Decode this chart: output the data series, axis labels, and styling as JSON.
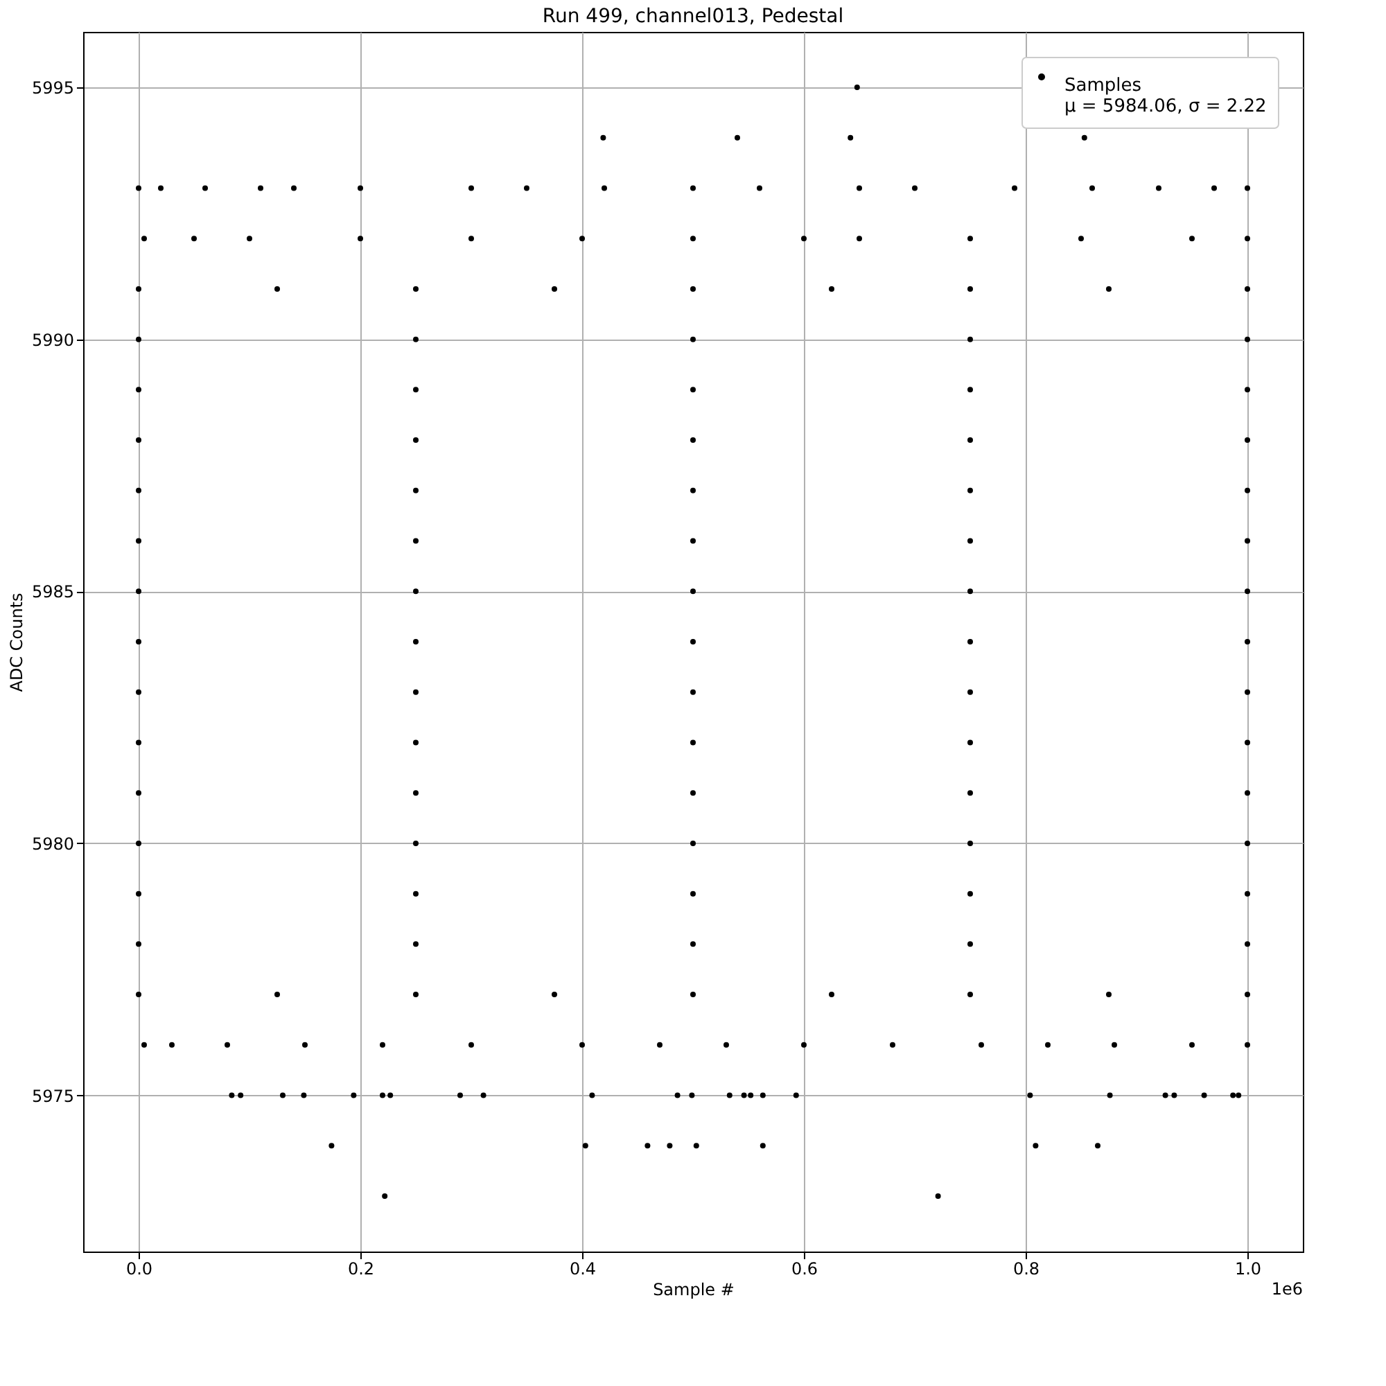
{
  "chart_data": {
    "type": "scatter",
    "title": "Run 499, channel013, Pedestal",
    "xlabel": "Sample #",
    "ylabel": "ADC Counts",
    "xlim": [
      -0.05,
      1.05
    ],
    "xticks": [
      {
        "value": 0,
        "label": "0.0"
      },
      0.2,
      0.4,
      0.6,
      0.8,
      {
        "value": 1,
        "label": "1.0"
      }
    ],
    "ylim": [
      5971.9,
      5996.1
    ],
    "yticks": [
      5975,
      5980,
      5985,
      5990,
      5995
    ],
    "grid": true,
    "legend": "top right",
    "marker": "circle",
    "annotations": [
      "1e6"
    ],
    "series": [
      {
        "name": "Samples\nμ = 5984.06, σ = 2.22",
        "color": "#000000",
        "x": [
          0.648,
          0.419,
          0.54,
          0.642,
          0.853,
          0,
          0.02,
          0.06,
          0.11,
          0.14,
          0.2,
          0.3,
          0.35,
          0.42,
          0.5,
          0.56,
          0.65,
          0.7,
          0.79,
          0.86,
          0.92,
          0.97,
          1,
          0.005,
          0.05,
          0.1,
          0.2,
          0.3,
          0.4,
          0.5,
          0.6,
          0.65,
          0.75,
          0.85,
          0.95,
          1,
          0,
          0.125,
          0.25,
          0.375,
          0.5,
          0.625,
          0.75,
          0.875,
          1,
          0,
          0.25,
          0.5,
          0.75,
          1,
          0,
          0.25,
          0.5,
          0.75,
          1,
          0,
          0.25,
          0.5,
          0.75,
          1,
          0,
          0.25,
          0.5,
          0.75,
          1,
          0,
          0.25,
          0.5,
          0.75,
          1,
          0,
          0.25,
          0.5,
          0.75,
          1,
          0,
          0.25,
          0.5,
          0.75,
          1,
          0,
          0.25,
          0.5,
          0.75,
          1,
          0,
          0.25,
          0.5,
          0.75,
          1,
          0,
          0.25,
          0.5,
          0.75,
          1,
          0,
          0.25,
          0.5,
          0.75,
          1,
          0,
          0.25,
          0.5,
          0.75,
          1,
          0,
          0.25,
          0.5,
          0.75,
          1,
          0,
          0.125,
          0.25,
          0.375,
          0.5,
          0.625,
          0.75,
          0.875,
          1,
          0.005,
          0.03,
          0.08,
          0.15,
          0.22,
          0.3,
          0.4,
          0.47,
          0.53,
          0.6,
          0.68,
          0.76,
          0.82,
          0.88,
          0.95,
          1,
          0.084,
          0.092,
          0.13,
          0.149,
          0.194,
          0.22,
          0.227,
          0.29,
          0.311,
          0.409,
          0.486,
          0.499,
          0.533,
          0.546,
          0.552,
          0.563,
          0.593,
          0.804,
          0.876,
          0.926,
          0.934,
          0.961,
          0.987,
          0.992,
          0.174,
          0.403,
          0.459,
          0.479,
          0.503,
          0.563,
          0.809,
          0.865,
          0.222,
          0.721
        ],
        "values": [
          5995,
          5994,
          5994,
          5994,
          5994,
          5993,
          5993,
          5993,
          5993,
          5993,
          5993,
          5993,
          5993,
          5993,
          5993,
          5993,
          5993,
          5993,
          5993,
          5993,
          5993,
          5993,
          5993,
          5992,
          5992,
          5992,
          5992,
          5992,
          5992,
          5992,
          5992,
          5992,
          5992,
          5992,
          5992,
          5992,
          5991,
          5991,
          5991,
          5991,
          5991,
          5991,
          5991,
          5991,
          5991,
          5990,
          5990,
          5990,
          5990,
          5990,
          5989,
          5989,
          5989,
          5989,
          5989,
          5988,
          5988,
          5988,
          5988,
          5988,
          5987,
          5987,
          5987,
          5987,
          5987,
          5986,
          5986,
          5986,
          5986,
          5986,
          5985,
          5985,
          5985,
          5985,
          5985,
          5984,
          5984,
          5984,
          5984,
          5984,
          5983,
          5983,
          5983,
          5983,
          5983,
          5982,
          5982,
          5982,
          5982,
          5982,
          5981,
          5981,
          5981,
          5981,
          5981,
          5980,
          5980,
          5980,
          5980,
          5980,
          5979,
          5979,
          5979,
          5979,
          5979,
          5978,
          5978,
          5978,
          5978,
          5978,
          5977,
          5977,
          5977,
          5977,
          5977,
          5977,
          5977,
          5977,
          5977,
          5976,
          5976,
          5976,
          5976,
          5976,
          5976,
          5976,
          5976,
          5976,
          5976,
          5976,
          5976,
          5976,
          5976,
          5976,
          5976,
          5975,
          5975,
          5975,
          5975,
          5975,
          5975,
          5975,
          5975,
          5975,
          5975,
          5975,
          5975,
          5975,
          5975,
          5975,
          5975,
          5975,
          5975,
          5975,
          5975,
          5975,
          5975,
          5975,
          5975,
          5974,
          5974,
          5974,
          5974,
          5974,
          5974,
          5974,
          5974,
          5973,
          5973
        ]
      }
    ]
  }
}
